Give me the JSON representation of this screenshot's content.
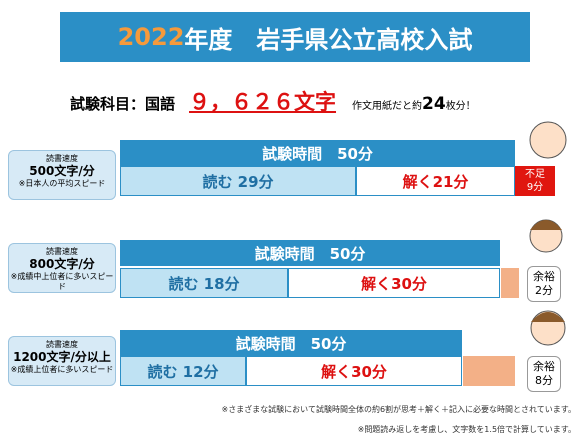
{
  "title": {
    "year": "2022",
    "text": "年度　岩手県公立高校入試"
  },
  "subject": {
    "label": "試験科目：国語",
    "chars": "９，６２６文字",
    "note": "作文用紙だと約",
    "sheets": "24",
    "suffix": "枚分！"
  },
  "rows": [
    {
      "speed_label": "読書速度",
      "speed": "500文字/分",
      "speed_note": "※日本人の平均スピード",
      "exam": "試験時間　50分",
      "read": "読む 29分",
      "solve": "解く21分",
      "margin_label": "不足",
      "margin": "9分"
    },
    {
      "speed_label": "読書速度",
      "speed": "800文字/分",
      "speed_note": "※成績中上位者に多いスピード",
      "exam": "試験時間　50分",
      "read": "読む 18分",
      "solve": "解く30分",
      "margin_label": "余裕",
      "margin": "2分"
    },
    {
      "speed_label": "読書速度",
      "speed": "1200文字/分以上",
      "speed_note": "※成績上位者に多いスピード",
      "exam": "試験時間　50分",
      "read": "読む 12分",
      "solve": "解く30分",
      "margin_label": "余裕",
      "margin": "8分"
    }
  ],
  "footnotes": [
    "※さまざまな試験において試験時間全体の約6割が思考＋解く＋記入に必要な時間とされています。",
    "※問題読み返しを考慮し、文字数を1.5倍で計算しています。"
  ]
}
